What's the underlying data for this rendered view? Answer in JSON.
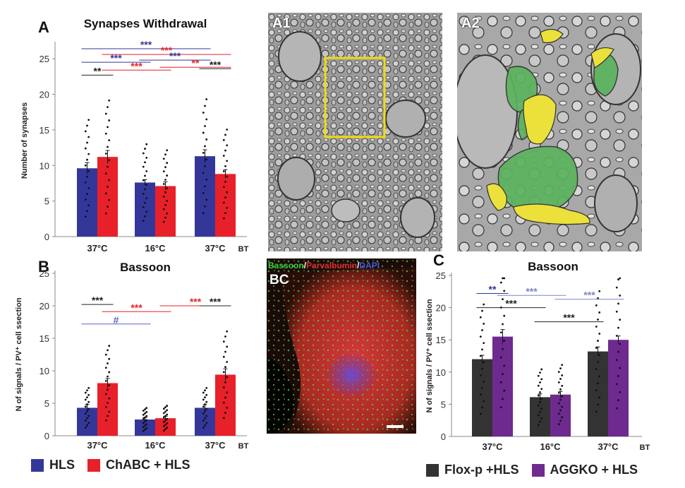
{
  "panels": {
    "a_letter": "A",
    "b_letter": "B",
    "c_letter": "C",
    "a1_label": "A1",
    "a2_label": "A2",
    "bc_label": "BC"
  },
  "fluorescence_channels": [
    {
      "text": "Bassoon",
      "color": "#3fd13f"
    },
    {
      "text": "/",
      "color": "#ffffff"
    },
    {
      "text": "Parvalbumin",
      "color": "#e03030"
    },
    {
      "text": "/",
      "color": "#ffffff"
    },
    {
      "text": "DAPI",
      "color": "#4a5adf"
    }
  ],
  "legend_left": [
    {
      "label": "HLS",
      "color": "#34379a"
    },
    {
      "label": "ChABC + HLS",
      "color": "#e8202a"
    }
  ],
  "legend_right": [
    {
      "label": "Flox-p +HLS",
      "color": "#333333"
    },
    {
      "label": "AGGKO + HLS",
      "color": "#6e2a8e"
    }
  ],
  "chart_data": [
    {
      "id": "A",
      "type": "bar",
      "title": "Synapses Withdrawal",
      "ylabel": "Number of synapses",
      "ylim": [
        0,
        27
      ],
      "yticks": [
        0,
        5,
        10,
        15,
        20,
        25
      ],
      "categories": [
        "37°C",
        "16°C",
        "37°C"
      ],
      "bt_label": "BT",
      "series": [
        {
          "color": "#34379a",
          "values": [
            9.6,
            7.6,
            11.3
          ],
          "errors": [
            0.8,
            0.4,
            0.9
          ]
        },
        {
          "color": "#e8202a",
          "values": [
            11.2,
            7.1,
            8.8
          ],
          "errors": [
            0.9,
            0.6,
            0.6
          ]
        }
      ],
      "significance": [
        {
          "text": "***",
          "color": "#34379a",
          "from": [
            0,
            0
          ],
          "to": [
            2,
            0
          ],
          "y": 26.4
        },
        {
          "text": "***",
          "color": "#e8202a",
          "from": [
            0,
            1
          ],
          "to": [
            2,
            1
          ],
          "y": 25.6
        },
        {
          "text": "***",
          "color": "#34379a",
          "from": [
            0,
            0
          ],
          "to": [
            1,
            0
          ],
          "y": 24.5
        },
        {
          "text": "***",
          "color": "#34379a",
          "from": [
            1,
            0
          ],
          "to": [
            2,
            0
          ],
          "y": 24.8
        },
        {
          "text": "***",
          "color": "#e8202a",
          "from": [
            0,
            1
          ],
          "to": [
            1,
            1
          ],
          "y": 23.4
        },
        {
          "text": "**",
          "color": "#e8202a",
          "from": [
            1,
            1
          ],
          "to": [
            2,
            1
          ],
          "y": 23.8
        },
        {
          "text": "**",
          "color": "#222222",
          "from": [
            0,
            0
          ],
          "to": [
            0,
            1
          ],
          "y": 22.7
        },
        {
          "text": "***",
          "color": "#222222",
          "from": [
            2,
            0
          ],
          "to": [
            2,
            1
          ],
          "y": 23.6
        }
      ]
    },
    {
      "id": "B",
      "type": "bar",
      "title": "Bassoon",
      "ylabel": "N of signals / PV⁺ cell ssection",
      "ylim": [
        0,
        25
      ],
      "yticks": [
        0,
        5,
        10,
        15,
        20,
        25
      ],
      "categories": [
        "37°C",
        "16°C",
        "37°C"
      ],
      "bt_label": "BT",
      "series": [
        {
          "color": "#34379a",
          "values": [
            4.3,
            2.5,
            4.3
          ],
          "errors": [
            0.5,
            0.3,
            0.5
          ]
        },
        {
          "color": "#e8202a",
          "values": [
            8.1,
            2.7,
            9.4
          ],
          "errors": [
            0.7,
            0.3,
            0.9
          ]
        }
      ],
      "significance": [
        {
          "text": "***",
          "color": "#222222",
          "from": [
            0,
            0
          ],
          "to": [
            0,
            1
          ],
          "y": 20.2
        },
        {
          "text": "***",
          "color": "#e8202a",
          "from": [
            0,
            1
          ],
          "to": [
            1,
            1
          ],
          "y": 19.1
        },
        {
          "text": "***",
          "color": "#e8202a",
          "from": [
            1,
            1
          ],
          "to": [
            2,
            1
          ],
          "y": 20.0
        },
        {
          "text": "***",
          "color": "#222222",
          "from": [
            2,
            0
          ],
          "to": [
            2,
            1
          ],
          "y": 20.0
        },
        {
          "text": "#",
          "color": "#5a60c8",
          "from": [
            0,
            0
          ],
          "to": [
            1,
            0
          ],
          "y": 17.2
        }
      ]
    },
    {
      "id": "C",
      "type": "bar",
      "title": "Bassoon",
      "ylabel": "N of signals / PV⁺ cell ssection",
      "ylim": [
        0,
        25
      ],
      "yticks": [
        0,
        5,
        10,
        15,
        20,
        25
      ],
      "categories": [
        "37°C",
        "16°C",
        "37°C"
      ],
      "bt_label": "BT",
      "series": [
        {
          "color": "#333333",
          "values": [
            12.0,
            6.1,
            13.2
          ],
          "errors": [
            0.6,
            0.5,
            0.7
          ]
        },
        {
          "color": "#6e2a8e",
          "values": [
            15.5,
            6.5,
            15.0
          ],
          "errors": [
            1.1,
            0.5,
            0.6
          ]
        }
      ],
      "significance": [
        {
          "text": "**",
          "color": "#34379a",
          "from": [
            0,
            0
          ],
          "to": [
            0,
            1
          ],
          "y": 22.2
        },
        {
          "text": "***",
          "color": "#7a86c4",
          "from": [
            0,
            1
          ],
          "to": [
            1,
            1
          ],
          "y": 21.9
        },
        {
          "text": "***",
          "color": "#222222",
          "from": [
            0,
            0
          ],
          "to": [
            1,
            0
          ],
          "y": 20.0
        },
        {
          "text": "***",
          "color": "#7a86c4",
          "from": [
            1,
            1
          ],
          "to": [
            2,
            1
          ],
          "y": 21.3
        },
        {
          "text": "***",
          "color": "#222222",
          "from": [
            1,
            0
          ],
          "to": [
            2,
            0
          ],
          "y": 17.8
        }
      ]
    }
  ]
}
